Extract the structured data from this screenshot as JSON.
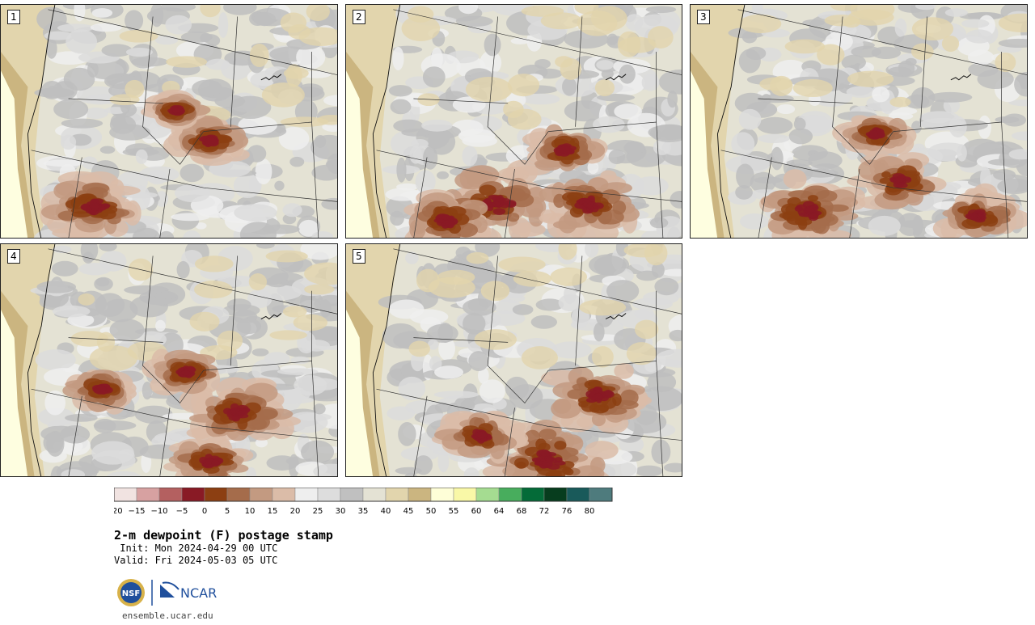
{
  "panels": [
    {
      "label": "1",
      "seed": 11,
      "hot": [
        [
          0.28,
          0.86,
          0.55
        ],
        [
          0.62,
          0.58,
          0.35
        ],
        [
          0.52,
          0.45,
          0.22
        ]
      ]
    },
    {
      "label": "2",
      "seed": 23,
      "hot": [
        [
          0.45,
          0.85,
          0.7
        ],
        [
          0.72,
          0.85,
          0.55
        ],
        [
          0.65,
          0.62,
          0.4
        ],
        [
          0.3,
          0.92,
          0.45
        ]
      ]
    },
    {
      "label": "3",
      "seed": 37,
      "hot": [
        [
          0.35,
          0.88,
          0.6
        ],
        [
          0.62,
          0.75,
          0.45
        ],
        [
          0.85,
          0.9,
          0.4
        ],
        [
          0.55,
          0.55,
          0.3
        ]
      ]
    },
    {
      "label": "4",
      "seed": 41,
      "hot": [
        [
          0.7,
          0.72,
          0.55
        ],
        [
          0.55,
          0.55,
          0.35
        ],
        [
          0.3,
          0.62,
          0.3
        ],
        [
          0.62,
          0.93,
          0.4
        ]
      ]
    },
    {
      "label": "5",
      "seed": 53,
      "hot": [
        [
          0.6,
          0.92,
          0.75
        ],
        [
          0.75,
          0.65,
          0.55
        ],
        [
          0.4,
          0.82,
          0.4
        ]
      ]
    }
  ],
  "colorbar": {
    "colors": [
      "#f1e3e1",
      "#d7a1a1",
      "#b46060",
      "#891a25",
      "#8c3f12",
      "#a56c4b",
      "#c39a81",
      "#dbbca8",
      "#eeeeee",
      "#dddddd",
      "#c0c0c0",
      "#e4e2d4",
      "#e2d5ad",
      "#cbb580",
      "#fefed7",
      "#f9f8a7",
      "#a5dc91",
      "#48ad5d",
      "#046b38",
      "#073d1e",
      "#195a5a",
      "#4e7b7d"
    ],
    "ticks": [
      "−20",
      "−15",
      "−10",
      "−5",
      "0",
      "5",
      "10",
      "15",
      "20",
      "25",
      "30",
      "35",
      "40",
      "45",
      "50",
      "55",
      "60",
      "64",
      "68",
      "72",
      "76",
      "80"
    ]
  },
  "title": "2-m dewpoint (F) postage stamp",
  "init": " Init: Mon 2024-04-29 00 UTC",
  "valid": "Valid: Fri 2024-05-03 05 UTC",
  "logo": {
    "nsf": "NSF",
    "ncar": "NCAR"
  },
  "site": "ensemble.ucar.edu"
}
